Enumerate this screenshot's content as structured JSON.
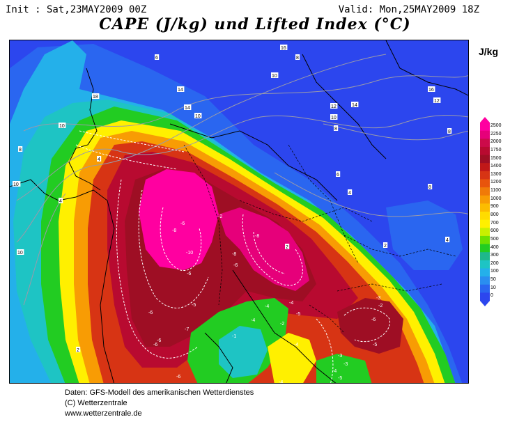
{
  "header": {
    "init": "Init : Sat,23MAY2009 00Z",
    "valid": "Valid: Mon,25MAY2009 18Z",
    "title": "CAPE (J/kg) und Lifted Index (°C)"
  },
  "legend": {
    "unit": "J/kg",
    "levels": [
      "2500",
      "2250",
      "2000",
      "1750",
      "1500",
      "1400",
      "1300",
      "1200",
      "1100",
      "1000",
      "900",
      "800",
      "700",
      "600",
      "500",
      "400",
      "300",
      "200",
      "100",
      "50",
      "10",
      "0"
    ],
    "colors": [
      "#ff00a0",
      "#e6007a",
      "#cc0a4a",
      "#b80a30",
      "#9e0e24",
      "#c01818",
      "#d73414",
      "#e8540c",
      "#f07a08",
      "#f89c04",
      "#fcbc00",
      "#ffdc00",
      "#fff000",
      "#c8f000",
      "#6ee000",
      "#22cc22",
      "#1eb88c",
      "#1ec4c4",
      "#24b0ea",
      "#2a8ef0",
      "#2a66f0",
      "#2c46ee"
    ]
  },
  "map": {
    "background_color": "#2c46ee",
    "lifted_index_labels": [
      {
        "t": "16",
        "c": "gray"
      },
      {
        "t": "8",
        "c": "gray"
      },
      {
        "t": "14",
        "c": "gray"
      },
      {
        "t": "14",
        "c": "gray"
      },
      {
        "t": "10",
        "c": "gray"
      },
      {
        "t": "16",
        "c": "gray"
      },
      {
        "t": "18",
        "c": "gray"
      },
      {
        "t": "14",
        "c": "gray"
      },
      {
        "t": "12",
        "c": "gray"
      },
      {
        "t": "10",
        "c": "gray"
      },
      {
        "t": "12",
        "c": "gray"
      },
      {
        "t": "10",
        "c": "gray"
      },
      {
        "t": "12",
        "c": "gray"
      },
      {
        "t": "10",
        "c": "gray"
      },
      {
        "t": "8",
        "c": "gray"
      },
      {
        "t": "8",
        "c": "gray"
      },
      {
        "t": "6",
        "c": "gray"
      },
      {
        "t": "6",
        "c": "gray"
      },
      {
        "t": "4",
        "c": "gray"
      },
      {
        "t": "8",
        "c": "gray"
      },
      {
        "t": "4",
        "c": "gray"
      },
      {
        "t": "2",
        "c": "gray"
      },
      {
        "t": "10",
        "c": "gray"
      },
      {
        "t": "8",
        "c": "gray"
      },
      {
        "t": "4",
        "c": "gray"
      },
      {
        "t": "10",
        "c": "gray"
      },
      {
        "t": "2",
        "c": "gray"
      },
      {
        "t": "2",
        "c": "gray"
      },
      {
        "t": "4",
        "c": "gray"
      },
      {
        "t": "-2",
        "c": "white"
      },
      {
        "t": "-6",
        "c": "white"
      },
      {
        "t": "-8",
        "c": "white"
      },
      {
        "t": "-10",
        "c": "white"
      },
      {
        "t": "-8",
        "c": "white"
      },
      {
        "t": "-6",
        "c": "white"
      },
      {
        "t": "-8",
        "c": "white"
      },
      {
        "t": "-6",
        "c": "white"
      },
      {
        "t": "-7",
        "c": "white"
      },
      {
        "t": "-6",
        "c": "white"
      },
      {
        "t": "-6",
        "c": "white"
      },
      {
        "t": "-4",
        "c": "white"
      },
      {
        "t": "-5",
        "c": "white"
      },
      {
        "t": "-6",
        "c": "white"
      },
      {
        "t": "-4",
        "c": "white"
      },
      {
        "t": "-5",
        "c": "white"
      },
      {
        "t": "-3",
        "c": "white"
      },
      {
        "t": "-2",
        "c": "white"
      },
      {
        "t": "-1",
        "c": "white"
      },
      {
        "t": "-4",
        "c": "white"
      },
      {
        "t": "-6",
        "c": "white"
      },
      {
        "t": "-4",
        "c": "white"
      },
      {
        "t": "-2",
        "c": "white"
      },
      {
        "t": "-3",
        "c": "white"
      },
      {
        "t": "-3",
        "c": "white"
      },
      {
        "t": "-4",
        "c": "white"
      },
      {
        "t": "-5",
        "c": "white"
      },
      {
        "t": "-5",
        "c": "white"
      },
      {
        "t": "-6",
        "c": "white"
      },
      {
        "t": "-4",
        "c": "white"
      }
    ]
  },
  "footer": {
    "line1": "Daten: GFS-Modell des amerikanischen Wetterdienstes",
    "line2": "(C) Wetterzentrale",
    "line3": "www.wetterzentrale.de"
  }
}
